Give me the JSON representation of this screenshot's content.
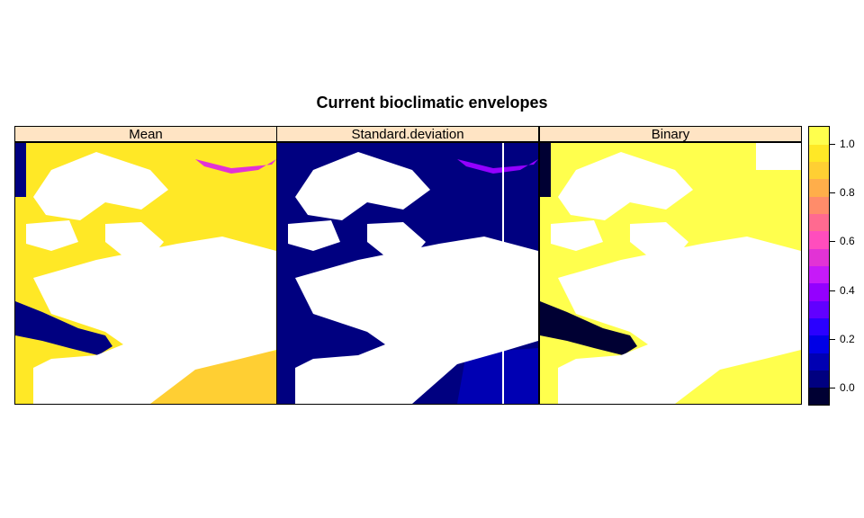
{
  "chart_data": {
    "type": "heatmap",
    "title": "Current bioclimatic envelopes",
    "panels": [
      {
        "name": "Mean",
        "value_min": 0.0,
        "value_max": 1.0,
        "land_value": null
      },
      {
        "name": "Standard.deviation",
        "value_min": 0.0,
        "value_max": 0.6,
        "land_value": null
      },
      {
        "name": "Binary",
        "value_min": 0.0,
        "value_max": 1.0,
        "land_value": null
      }
    ],
    "colorkey": {
      "ticks": [
        "0.0",
        "0.2",
        "0.4",
        "0.6",
        "0.8",
        "1.0"
      ],
      "tick_values": [
        0.0,
        0.2,
        0.4,
        0.6,
        0.8,
        1.0
      ],
      "range": [
        -0.07,
        1.07
      ],
      "colors": [
        "#000033",
        "#000080",
        "#0000b3",
        "#0000e6",
        "#2a00ff",
        "#6100ff",
        "#9400ff",
        "#c61af8",
        "#e233d5",
        "#ff4dbd",
        "#ff6a90",
        "#ff8c6a",
        "#ffae4a",
        "#ffcf33",
        "#ffe826",
        "#ffff4d"
      ]
    }
  }
}
